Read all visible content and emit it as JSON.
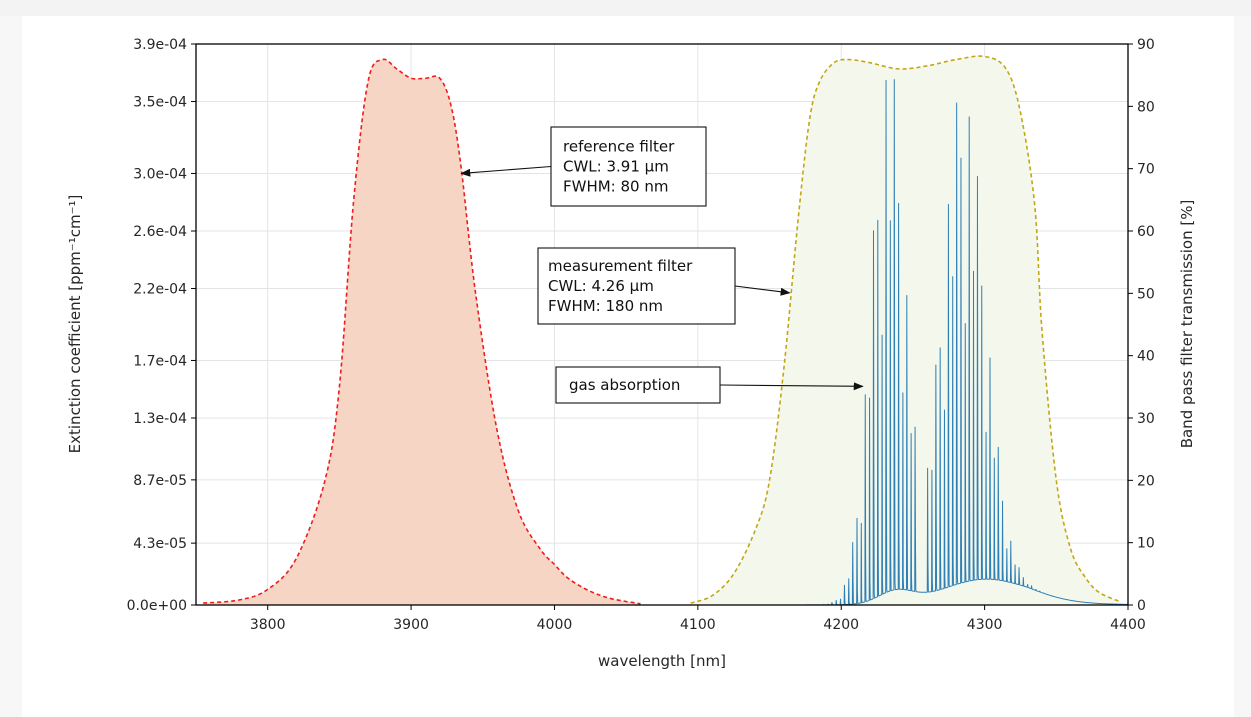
{
  "chart_data": {
    "type": "line",
    "title": "",
    "xlabel": "wavelength [nm]",
    "ylabel_left": "Extinction coefficient [ppm⁻¹cm⁻¹]",
    "ylabel_right": "Band pass filter transmission [%]",
    "xlim": [
      3750,
      4400
    ],
    "ylim_left": [
      0,
      0.00039
    ],
    "ylim_right": [
      0,
      90
    ],
    "x_ticks": [
      3800,
      3900,
      4000,
      4100,
      4200,
      4300,
      4400
    ],
    "x_tick_labels": [
      "3800",
      "3900",
      "4000",
      "4100",
      "4200",
      "4300",
      "4400"
    ],
    "y_left_ticks": [
      0,
      4.3e-05,
      8.7e-05,
      0.00013,
      0.00017,
      0.00022,
      0.00026,
      0.0003,
      0.00035,
      0.00039
    ],
    "y_left_tick_labels": [
      "0.0e+00",
      "4.3e-05",
      "8.7e-05",
      "1.3e-04",
      "1.7e-04",
      "2.2e-04",
      "2.6e-04",
      "3.0e-04",
      "3.5e-04",
      "3.9e-04"
    ],
    "y_right_ticks": [
      0,
      10,
      20,
      30,
      40,
      50,
      60,
      70,
      80,
      90
    ],
    "y_right_tick_labels": [
      "0",
      "10",
      "20",
      "30",
      "40",
      "50",
      "60",
      "70",
      "80",
      "90"
    ],
    "grid": true,
    "series": [
      {
        "style": "dashed",
        "color": "#ee1c1c",
        "fill": "#f6d5c4",
        "axis": "right",
        "x": [
          3755,
          3780,
          3800,
          3820,
          3840,
          3850,
          3860,
          3870,
          3880,
          3890,
          3900,
          3910,
          3920,
          3928,
          3935,
          3945,
          3960,
          3975,
          3990,
          4000,
          4010,
          4025,
          4040,
          4060
        ],
        "y": [
          0.3,
          0.8,
          2.5,
          7.5,
          20,
          35,
          65,
          84,
          87.5,
          86,
          84.5,
          84.5,
          84.5,
          80,
          70,
          50,
          28,
          15,
          9,
          6.5,
          4.2,
          2.2,
          1,
          0.2
        ]
      },
      {
        "style": "dashed",
        "color": "#c2a713",
        "fill": "#f4f8ec",
        "axis": "right",
        "x": [
          4095,
          4110,
          4125,
          4140,
          4150,
          4160,
          4170,
          4178,
          4185,
          4195,
          4205,
          4220,
          4240,
          4260,
          4280,
          4300,
          4315,
          4325,
          4335,
          4340,
          4350,
          4360,
          4370,
          4380,
          4395
        ],
        "y": [
          0.3,
          1.5,
          5,
          12,
          20,
          38,
          62,
          78,
          84,
          87,
          87.5,
          87,
          86,
          86.5,
          87.5,
          88,
          86,
          79,
          64,
          44,
          20,
          9,
          4.5,
          2,
          0.5
        ]
      },
      {
        "style": "solid",
        "color": "#2f7fb5",
        "axis": "left",
        "x_start": 4150,
        "x_end": 4400,
        "line_spacing_nm": 2.9,
        "branches": [
          {
            "name": "R",
            "center": 4233,
            "peak": 0.000375,
            "width": 12,
            "x_min": 4180,
            "x_max": 4253
          },
          {
            "name": "P",
            "center": 4285,
            "peak": 0.00035,
            "width": 15,
            "x_min": 4258,
            "x_max": 4400
          }
        ],
        "baseline_peaks": [
          {
            "center": 4238,
            "peak": 8.5e-06,
            "width": 12
          },
          {
            "center": 4300,
            "peak": 1.7e-05,
            "width": 30
          }
        ]
      }
    ],
    "annotations": [
      {
        "lines": [
          "reference filter",
          "CWL: 3.91 µm",
          "FWHM: 80 nm"
        ],
        "x": 3935,
        "y": 0.0003
      },
      {
        "lines": [
          "measurement filter",
          "CWL: 4.26 µm",
          "FWHM: 180 nm"
        ],
        "x": 4164,
        "y": 0.000217
      },
      {
        "lines": [
          "gas absorption"
        ],
        "x": 4215,
        "y": 0.000152
      }
    ]
  }
}
